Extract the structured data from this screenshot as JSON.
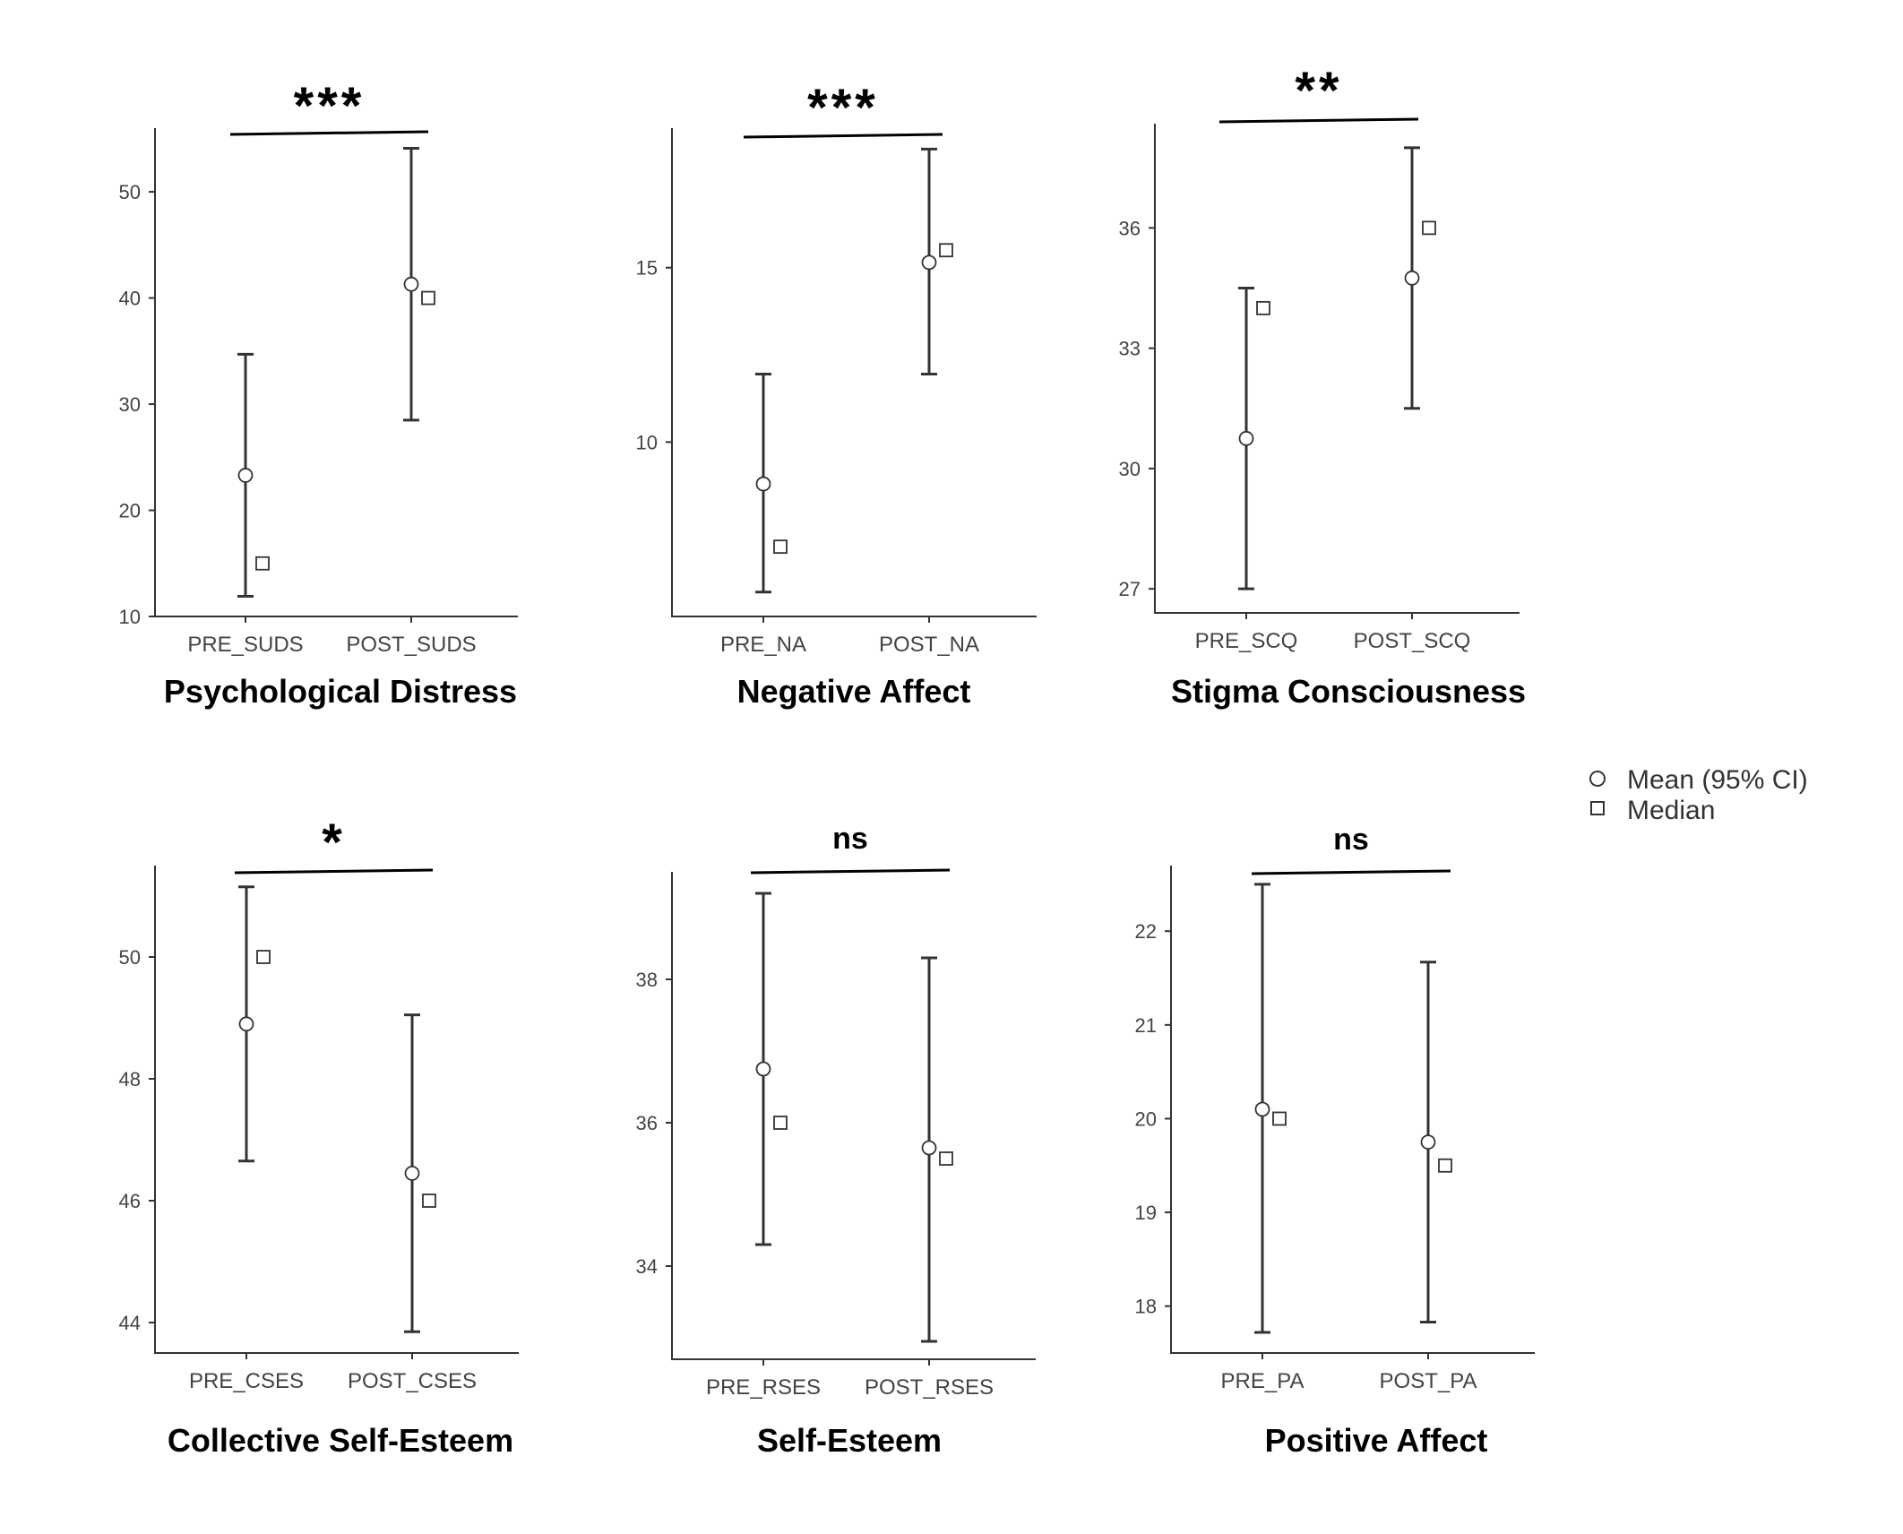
{
  "legend": {
    "mean_label": "Mean (95% CI)",
    "median_label": "Median"
  },
  "chart_data": [
    {
      "type": "errorbar",
      "title": "Psychological Distress",
      "categories": [
        "PRE_SUDS",
        "POST_SUDS"
      ],
      "mean": [
        23.3,
        41.3
      ],
      "ci_low": [
        11.9,
        28.5
      ],
      "ci_high": [
        34.7,
        54.1
      ],
      "median": [
        15,
        40
      ],
      "yticks": [
        10,
        20,
        30,
        40,
        50
      ],
      "ylim": [
        10,
        56
      ],
      "significance": "***"
    },
    {
      "type": "errorbar",
      "title": "Negative Affect",
      "categories": [
        "PRE_NA",
        "POST_NA"
      ],
      "mean": [
        8.8,
        15.15
      ],
      "ci_low": [
        5.7,
        11.95
      ],
      "ci_high": [
        11.95,
        18.4
      ],
      "median": [
        7,
        15.5
      ],
      "yticks": [
        10,
        15
      ],
      "ylim": [
        5.0,
        19.0
      ],
      "significance": "***"
    },
    {
      "type": "errorbar",
      "title": "Stigma Consciousness",
      "categories": [
        "PRE_SCQ",
        "POST_SCQ"
      ],
      "mean": [
        30.75,
        34.75
      ],
      "ci_low": [
        27.0,
        31.5
      ],
      "ci_high": [
        34.5,
        38.0
      ],
      "median": [
        34,
        36
      ],
      "yticks": [
        27,
        30,
        33,
        36
      ],
      "ylim": [
        26.4,
        38.6
      ],
      "significance": "**"
    },
    {
      "type": "errorbar",
      "title": "Collective Self-Esteem",
      "categories": [
        "PRE_CSES",
        "POST_CSES"
      ],
      "mean": [
        48.9,
        46.45
      ],
      "ci_low": [
        46.65,
        43.85
      ],
      "ci_high": [
        51.15,
        49.05
      ],
      "median": [
        50,
        46
      ],
      "yticks": [
        44,
        46,
        48,
        50
      ],
      "ylim": [
        43.5,
        51.5
      ],
      "significance": "*"
    },
    {
      "type": "errorbar",
      "title": "Self-Esteem",
      "categories": [
        "PRE_RSES",
        "POST_RSES"
      ],
      "mean": [
        36.75,
        35.65
      ],
      "ci_low": [
        34.3,
        32.95
      ],
      "ci_high": [
        39.2,
        38.3
      ],
      "median": [
        36,
        35.5
      ],
      "yticks": [
        34,
        36,
        38
      ],
      "ylim": [
        32.7,
        39.5
      ],
      "significance": "ns"
    },
    {
      "type": "errorbar",
      "title": "Positive Affect",
      "categories": [
        "PRE_PA",
        "POST_PA"
      ],
      "mean": [
        20.1,
        19.75
      ],
      "ci_low": [
        17.72,
        17.83
      ],
      "ci_high": [
        22.5,
        21.67
      ],
      "median": [
        20,
        19.5
      ],
      "yticks": [
        18,
        19,
        20,
        21,
        22
      ],
      "ylim": [
        17.5,
        22.7
      ],
      "significance": "ns"
    }
  ]
}
